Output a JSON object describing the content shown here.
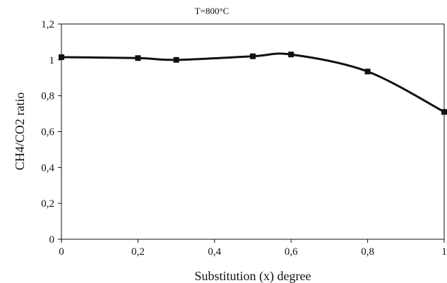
{
  "chart_data": {
    "type": "line",
    "title": "T=800°C",
    "xlabel": "Substitution (x) degree",
    "ylabel": "CH4/CO2 ratio",
    "xlim": [
      0,
      1
    ],
    "ylim": [
      0,
      1.2
    ],
    "x_ticks": [
      "0",
      "0,2",
      "0,4",
      "0,6",
      "0,8",
      "1"
    ],
    "y_ticks": [
      "0",
      "0,2",
      "0,4",
      "0,6",
      "0,8",
      "1",
      "1,2"
    ],
    "grid": false,
    "legend": "none",
    "series": [
      {
        "color": "#111111",
        "marker": "square",
        "smooth": true,
        "x": [
          0,
          0.2,
          0.3,
          0.5,
          0.6,
          0.8,
          1.0
        ],
        "y": [
          1.015,
          1.01,
          1.0,
          1.02,
          1.03,
          0.935,
          0.71
        ]
      }
    ]
  }
}
